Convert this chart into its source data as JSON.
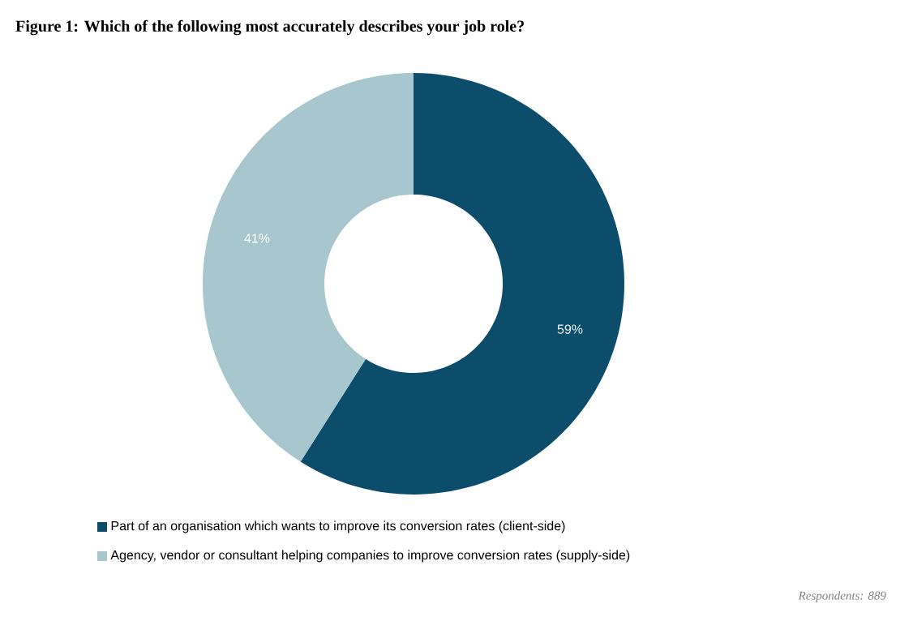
{
  "chart_data": {
    "type": "donut",
    "title": "Figure 1: Which of the following most accurately describes your job role?",
    "categories": [
      "Part of an organisation which wants to improve its conversion rates (client-side)",
      "Agency, vendor or consultant helping companies to improve conversion rates (supply-side)"
    ],
    "values": [
      59,
      41
    ],
    "colors": [
      "#0d4d6c",
      "#a7c6cd"
    ],
    "data_labels": true,
    "value_labels": [
      "59%",
      "41%"
    ],
    "legend": "bottom",
    "annotations": [
      "Respondents: 889"
    ]
  }
}
